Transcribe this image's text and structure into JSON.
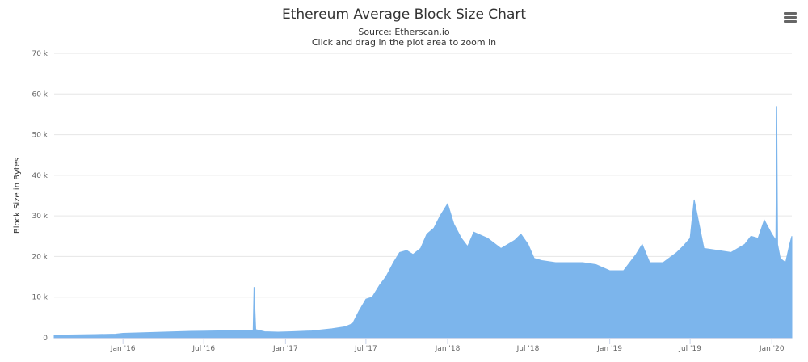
{
  "chart_data": {
    "type": "area",
    "title": "Ethereum Average Block Size Chart",
    "subtitle": "Source: Etherscan.io",
    "subtitle2": "Click and drag in the plot area to zoom in",
    "xlabel": "",
    "ylabel": "Block Size in Bytes",
    "ylim": [
      0,
      70000
    ],
    "y_ticks": [
      0,
      10000,
      20000,
      30000,
      40000,
      50000,
      60000,
      70000
    ],
    "y_tick_labels": [
      "0",
      "10 k",
      "20 k",
      "30 k",
      "40 k",
      "50 k",
      "60 k",
      "70 k"
    ],
    "x_range": [
      "2015-07-30",
      "2020-02-15"
    ],
    "x_ticks": [
      "2016-01-01",
      "2016-07-01",
      "2017-01-01",
      "2017-07-01",
      "2018-01-01",
      "2018-07-01",
      "2019-01-01",
      "2019-07-01",
      "2020-01-01"
    ],
    "x_tick_labels": [
      "Jan '16",
      "Jul '16",
      "Jan '17",
      "Jul '17",
      "Jan '18",
      "Jul '18",
      "Jan '19",
      "Jul '19",
      "Jan '20"
    ],
    "grid": true,
    "color": "#7cb5ec",
    "series": [
      {
        "dates": [
          "2015-07-30",
          "2015-09-01",
          "2015-11-01",
          "2015-12-15",
          "2016-01-01",
          "2016-02-01",
          "2016-04-01",
          "2016-06-01",
          "2016-08-01",
          "2016-10-01",
          "2016-10-20",
          "2016-10-22",
          "2016-10-26",
          "2016-11-15",
          "2016-12-15",
          "2017-01-15",
          "2017-03-01",
          "2017-04-15",
          "2017-05-15",
          "2017-06-01",
          "2017-06-15",
          "2017-07-01",
          "2017-07-15",
          "2017-08-01",
          "2017-08-15",
          "2017-09-01",
          "2017-09-15",
          "2017-10-01",
          "2017-10-15",
          "2017-11-01",
          "2017-11-15",
          "2017-12-01",
          "2017-12-15",
          "2018-01-01",
          "2018-01-15",
          "2018-02-01",
          "2018-02-15",
          "2018-03-01",
          "2018-04-01",
          "2018-05-01",
          "2018-06-01",
          "2018-06-15",
          "2018-07-01",
          "2018-07-15",
          "2018-08-01",
          "2018-09-01",
          "2018-10-01",
          "2018-11-01",
          "2018-12-01",
          "2019-01-01",
          "2019-02-01",
          "2019-03-01",
          "2019-03-15",
          "2019-04-01",
          "2019-05-01",
          "2019-06-01",
          "2019-06-15",
          "2019-07-01",
          "2019-07-10",
          "2019-08-01",
          "2019-09-01",
          "2019-10-01",
          "2019-11-01",
          "2019-11-15",
          "2019-12-01",
          "2019-12-15",
          "2020-01-01",
          "2020-01-10",
          "2020-01-12",
          "2020-01-14",
          "2020-01-20",
          "2020-02-01",
          "2020-02-10",
          "2020-02-15"
        ],
        "values": [
          600,
          700,
          800,
          900,
          1100,
          1200,
          1400,
          1600,
          1700,
          1800,
          1800,
          12500,
          2000,
          1500,
          1400,
          1500,
          1700,
          2200,
          2700,
          3500,
          6500,
          9500,
          10000,
          13000,
          15000,
          18500,
          21000,
          21500,
          20500,
          22000,
          25500,
          27000,
          30000,
          33000,
          28000,
          24500,
          22500,
          26000,
          24500,
          22000,
          24000,
          25500,
          23000,
          19500,
          19000,
          18500,
          18500,
          18500,
          18000,
          16500,
          16500,
          20500,
          23000,
          18500,
          18500,
          21000,
          22500,
          24500,
          34000,
          22000,
          21500,
          21000,
          23000,
          25000,
          24500,
          29000,
          25500,
          24000,
          57000,
          23000,
          19500,
          18500,
          23000,
          25000
        ]
      }
    ]
  }
}
